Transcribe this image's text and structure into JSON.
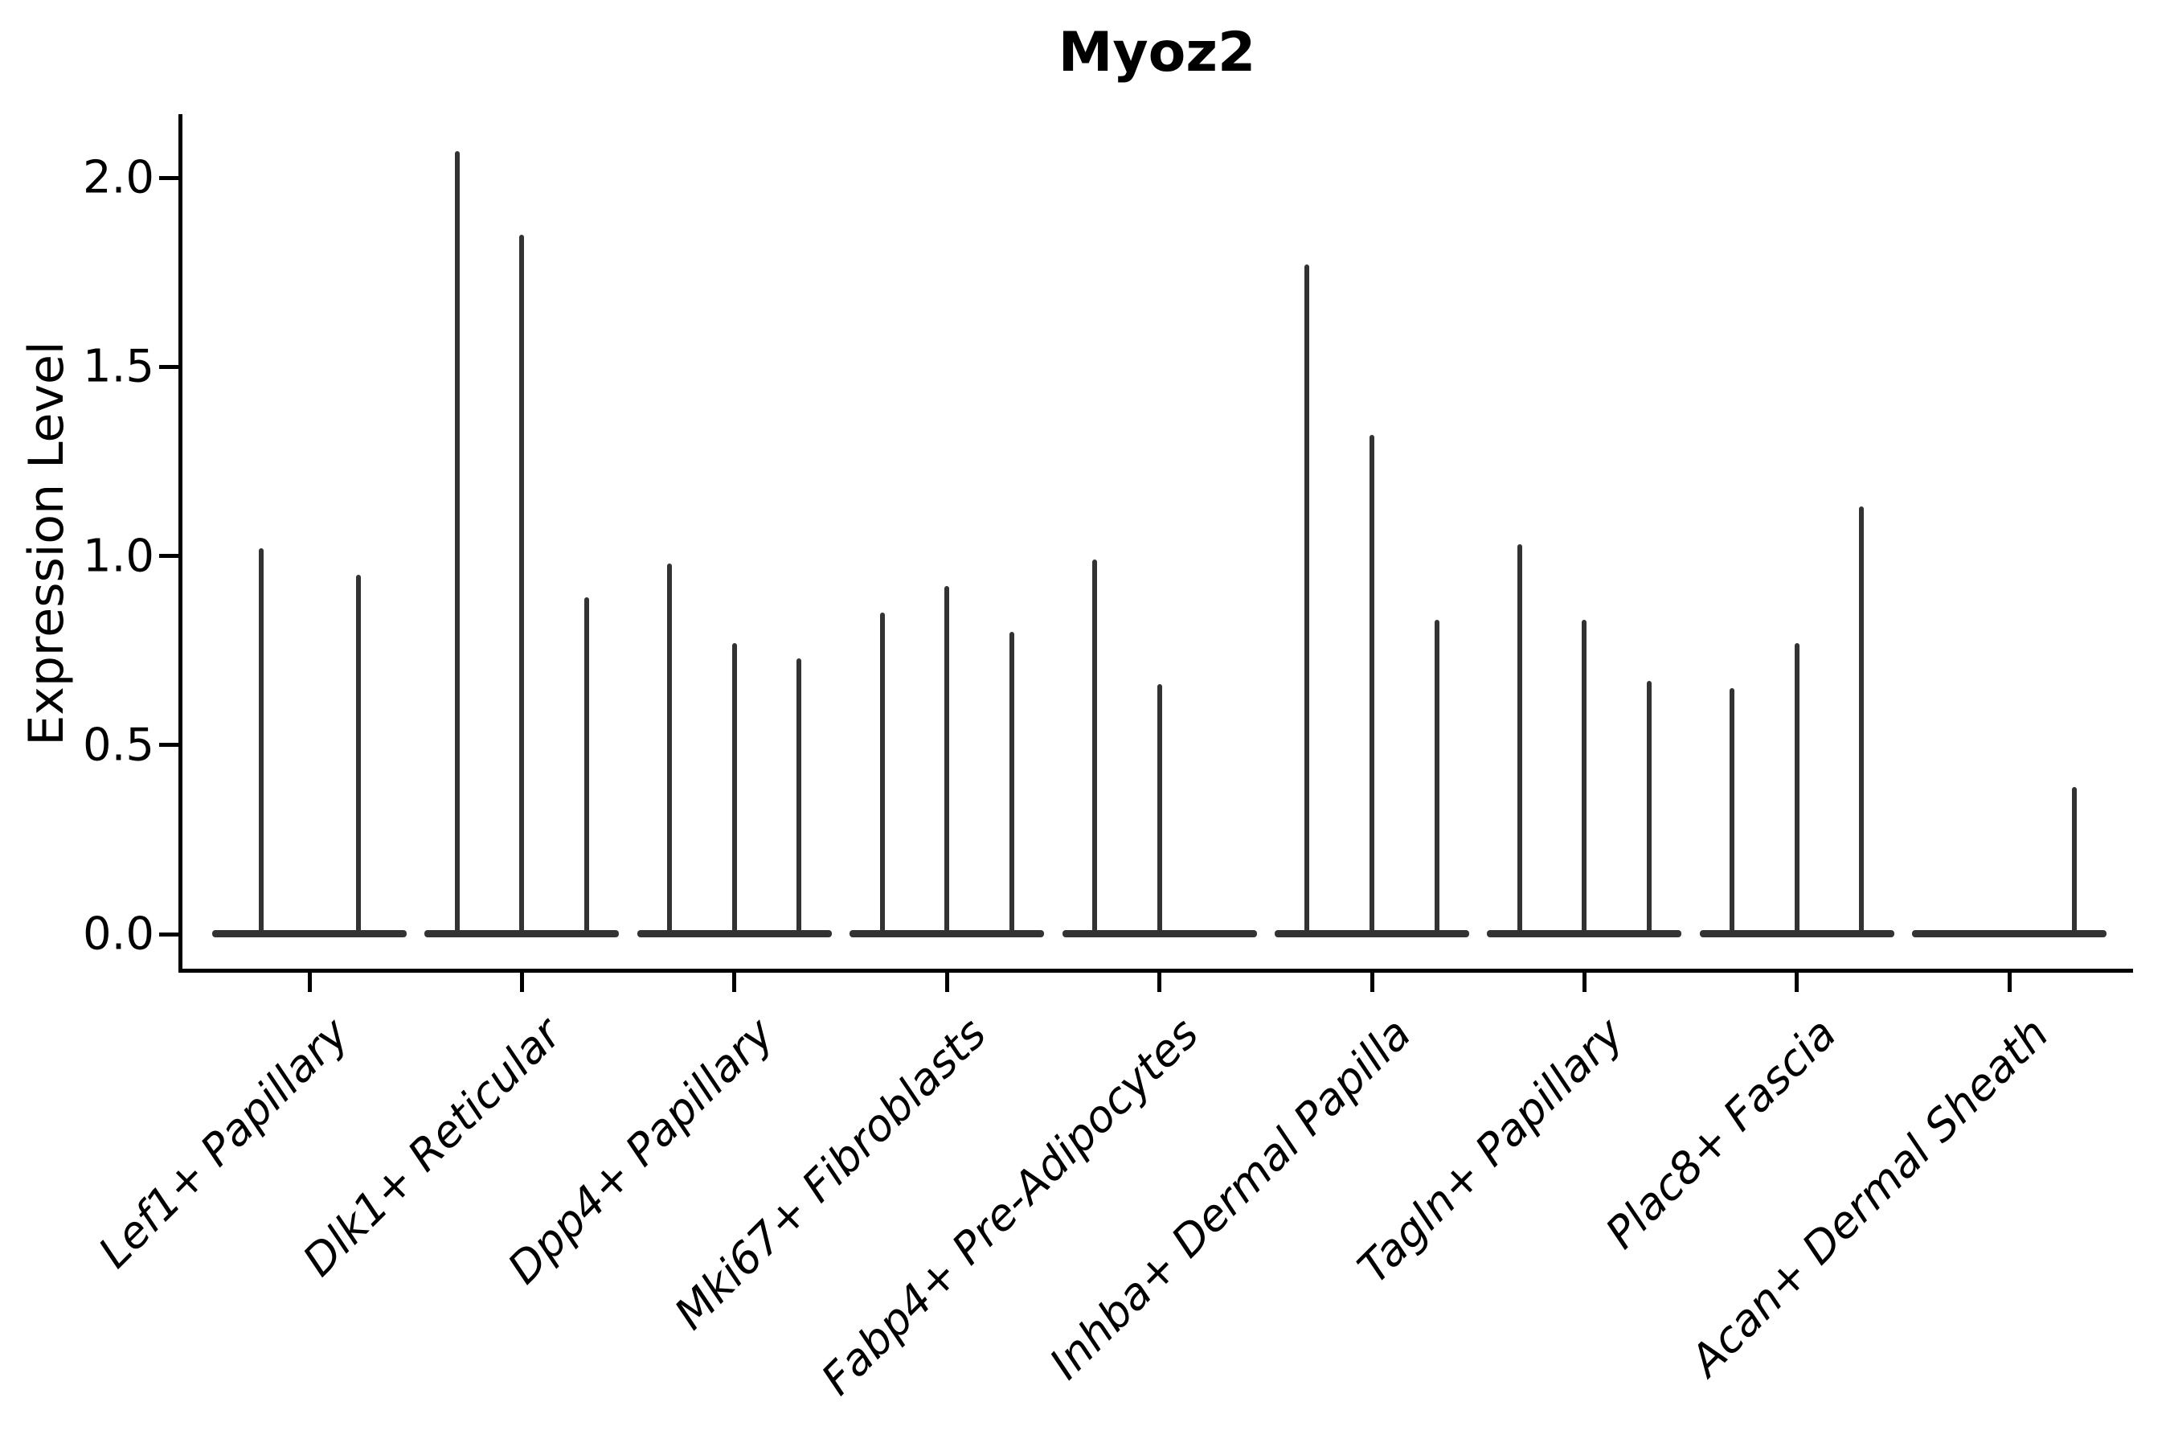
{
  "title": "Myoz2",
  "ylabel": "Expression Level",
  "chart_data": {
    "type": "violin",
    "title": "Myoz2",
    "xlabel": "",
    "ylabel": "Expression Level",
    "ylim": [
      -0.1,
      2.17
    ],
    "yticks": [
      0.0,
      0.5,
      1.0,
      1.5,
      2.0
    ],
    "ytick_labels": [
      "0.0",
      "0.5",
      "1.0",
      "1.5",
      "2.0"
    ],
    "grid": false,
    "legend_position": "none",
    "violin_color": "#333333",
    "axis_color": "#000000",
    "categories": [
      "Lef1+ Papillary",
      "Dlk1+ Reticular",
      "Dpp4+ Papillary",
      "Mki67+ Fibroblasts",
      "Fabp4+ Pre-Adipocytes",
      "Inhba+ Dermal Papilla",
      "Tagln+ Papillary",
      "Plac8+ Fascia",
      "Acan+ Dermal Sheath"
    ],
    "groups": [
      {
        "label": "Lef1+ Papillary",
        "violin_max_values": [
          1.02,
          0.95
        ]
      },
      {
        "label": "Dlk1+ Reticular",
        "violin_max_values": [
          2.07,
          1.85,
          0.89
        ]
      },
      {
        "label": "Dpp4+ Papillary",
        "violin_max_values": [
          0.98,
          0.77,
          0.73
        ]
      },
      {
        "label": "Mki67+ Fibroblasts",
        "violin_max_values": [
          0.85,
          0.92,
          0.8
        ]
      },
      {
        "label": "Fabp4+ Pre-Adipocytes",
        "violin_max_values": [
          0.99,
          0.66,
          0.0
        ]
      },
      {
        "label": "Inhba+ Dermal Papilla",
        "violin_max_values": [
          1.77,
          1.32,
          0.83
        ]
      },
      {
        "label": "Tagln+ Papillary",
        "violin_max_values": [
          1.03,
          0.83,
          0.67
        ]
      },
      {
        "label": "Plac8+ Fascia",
        "violin_max_values": [
          0.65,
          0.77,
          1.13
        ]
      },
      {
        "label": "Acan+ Dermal Sheath",
        "violin_max_values": [
          0.0,
          0.0,
          0.39
        ]
      }
    ]
  }
}
